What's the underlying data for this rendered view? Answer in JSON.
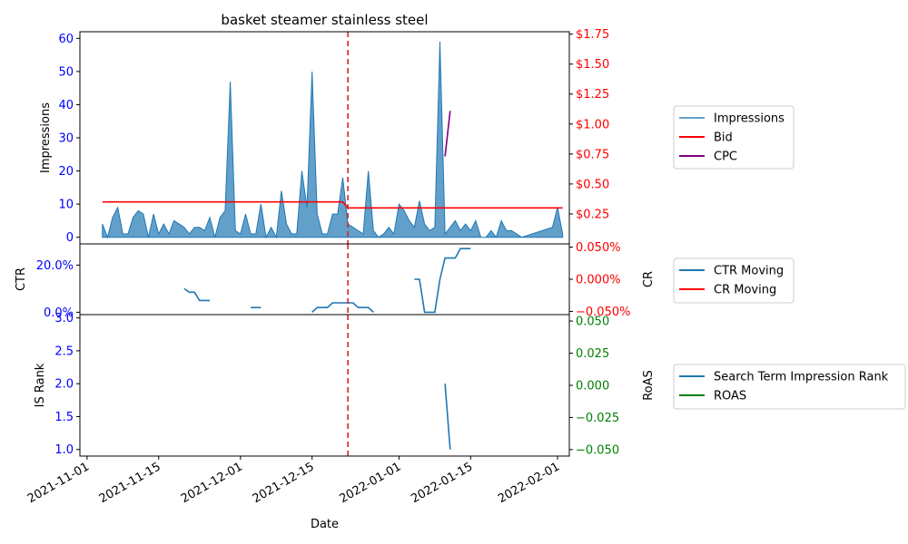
{
  "chart_data": {
    "type": "line",
    "title": "basket steamer stainless steel",
    "xlabel": "Date",
    "x_ticks": [
      "2021-11-01",
      "2021-11-15",
      "2021-12-01",
      "2021-12-15",
      "2022-01-01",
      "2022-01-15",
      "2022-02-01"
    ],
    "event_date": "2021-12-22",
    "event_color": "#d62728",
    "panels": [
      {
        "id": "impressions",
        "ylabel_left": "Impressions",
        "ylim_left": [
          -2,
          62
        ],
        "yticks_left": [
          0,
          10,
          20,
          30,
          40,
          50,
          60
        ],
        "ylim_right": [
          0,
          1.77
        ],
        "yticks_right": [
          0.25,
          0.5,
          0.75,
          1.0,
          1.25,
          1.5,
          1.75
        ],
        "yticks_right_labels": [
          "$0.25",
          "$0.50",
          "$0.75",
          "$1.00",
          "$1.25",
          "$1.50",
          "$1.75"
        ],
        "left_tick_color": "#0000ff",
        "right_tick_color": "#ff0000",
        "legend": [
          "Impressions",
          "Bid",
          "CPC"
        ],
        "series": [
          {
            "name": "Impressions",
            "axis": "left",
            "kind": "area",
            "color": "#1f77b4",
            "points": [
              [
                "2021-11-04",
                4
              ],
              [
                "2021-11-05",
                0
              ],
              [
                "2021-11-06",
                6
              ],
              [
                "2021-11-07",
                9
              ],
              [
                "2021-11-08",
                1
              ],
              [
                "2021-11-09",
                1
              ],
              [
                "2021-11-10",
                6
              ],
              [
                "2021-11-11",
                8
              ],
              [
                "2021-11-12",
                7
              ],
              [
                "2021-11-13",
                0
              ],
              [
                "2021-11-14",
                7
              ],
              [
                "2021-11-15",
                1
              ],
              [
                "2021-11-16",
                4
              ],
              [
                "2021-11-17",
                1
              ],
              [
                "2021-11-18",
                5
              ],
              [
                "2021-11-19",
                4
              ],
              [
                "2021-11-20",
                3
              ],
              [
                "2021-11-21",
                1
              ],
              [
                "2021-11-22",
                3
              ],
              [
                "2021-11-23",
                3
              ],
              [
                "2021-11-24",
                2
              ],
              [
                "2021-11-25",
                6
              ],
              [
                "2021-11-26",
                0
              ],
              [
                "2021-11-27",
                6
              ],
              [
                "2021-11-28",
                8
              ],
              [
                "2021-11-29",
                47
              ],
              [
                "2021-11-30",
                2
              ],
              [
                "2021-12-01",
                1
              ],
              [
                "2021-12-02",
                7
              ],
              [
                "2021-12-03",
                1
              ],
              [
                "2021-12-04",
                1
              ],
              [
                "2021-12-05",
                10
              ],
              [
                "2021-12-06",
                0
              ],
              [
                "2021-12-07",
                3
              ],
              [
                "2021-12-08",
                0
              ],
              [
                "2021-12-09",
                14
              ],
              [
                "2021-12-10",
                4
              ],
              [
                "2021-12-11",
                1
              ],
              [
                "2021-12-12",
                1
              ],
              [
                "2021-12-13",
                20
              ],
              [
                "2021-12-14",
                9
              ],
              [
                "2021-12-15",
                50
              ],
              [
                "2021-12-16",
                7
              ],
              [
                "2021-12-17",
                1
              ],
              [
                "2021-12-18",
                1
              ],
              [
                "2021-12-19",
                7
              ],
              [
                "2021-12-20",
                7
              ],
              [
                "2021-12-21",
                18
              ],
              [
                "2021-12-22",
                4
              ],
              [
                "2021-12-23",
                3
              ],
              [
                "2021-12-24",
                2
              ],
              [
                "2021-12-25",
                1
              ],
              [
                "2021-12-26",
                20
              ],
              [
                "2021-12-27",
                2
              ],
              [
                "2021-12-28",
                0
              ],
              [
                "2021-12-29",
                1
              ],
              [
                "2021-12-30",
                3
              ],
              [
                "2021-12-31",
                1
              ],
              [
                "2022-01-01",
                10
              ],
              [
                "2022-01-02",
                8
              ],
              [
                "2022-01-03",
                5
              ],
              [
                "2022-01-04",
                3
              ],
              [
                "2022-01-05",
                11
              ],
              [
                "2022-01-06",
                4
              ],
              [
                "2022-01-07",
                2
              ],
              [
                "2022-01-08",
                3
              ],
              [
                "2022-01-09",
                59
              ],
              [
                "2022-01-10",
                1
              ],
              [
                "2022-01-11",
                3
              ],
              [
                "2022-01-12",
                5
              ],
              [
                "2022-01-13",
                2
              ],
              [
                "2022-01-14",
                4
              ],
              [
                "2022-01-15",
                2
              ],
              [
                "2022-01-16",
                5
              ],
              [
                "2022-01-17",
                0
              ],
              [
                "2022-01-18",
                0
              ],
              [
                "2022-01-19",
                2
              ],
              [
                "2022-01-20",
                0
              ],
              [
                "2022-01-21",
                5
              ],
              [
                "2022-01-22",
                2
              ],
              [
                "2022-01-23",
                2
              ],
              [
                "2022-01-24",
                1
              ],
              [
                "2022-01-25",
                0
              ],
              [
                "2022-01-31",
                3
              ],
              [
                "2022-02-01",
                9
              ],
              [
                "2022-02-02",
                1
              ]
            ]
          },
          {
            "name": "Bid",
            "axis": "right",
            "kind": "line",
            "color": "#ff0000",
            "points": [
              [
                "2021-11-04",
                0.35
              ],
              [
                "2021-12-21",
                0.35
              ],
              [
                "2021-12-22",
                0.3
              ],
              [
                "2022-02-02",
                0.3
              ]
            ]
          },
          {
            "name": "CPC",
            "axis": "right",
            "kind": "line",
            "color": "#800080",
            "points": [
              [
                "2022-01-10",
                0.73
              ],
              [
                "2022-01-11",
                1.11
              ]
            ]
          }
        ]
      },
      {
        "id": "ctr",
        "ylabel_left": "CTR",
        "ylabel_right": "CR",
        "ylim_left": [
          -0.01,
          0.29
        ],
        "yticks_left": [
          0,
          0.2
        ],
        "yticks_left_labels": [
          "0.0%",
          "20.0%"
        ],
        "ylim_right": [
          -0.055,
          0.055
        ],
        "yticks_right": [
          -0.05,
          0.0,
          0.05
        ],
        "yticks_right_labels": [
          "−0.050%",
          "0.000%",
          "0.050%"
        ],
        "left_tick_color": "#0000ff",
        "right_tick_color": "#ff0000",
        "legend": [
          "CTR Moving",
          "CR Moving"
        ],
        "series": [
          {
            "name": "CTR Moving",
            "axis": "left",
            "kind": "segments",
            "color": "#1f77b4",
            "segments": [
              [
                [
                  "2021-11-20",
                  0.1
                ],
                [
                  "2021-11-21",
                  0.085
                ],
                [
                  "2021-11-22",
                  0.085
                ],
                [
                  "2021-11-23",
                  0.05
                ],
                [
                  "2021-11-24",
                  0.05
                ],
                [
                  "2021-11-25",
                  0.05
                ]
              ],
              [
                [
                  "2021-12-03",
                  0.02
                ],
                [
                  "2021-12-04",
                  0.02
                ],
                [
                  "2021-12-05",
                  0.02
                ]
              ],
              [
                [
                  "2021-12-15",
                  0.0
                ],
                [
                  "2021-12-16",
                  0.02
                ],
                [
                  "2021-12-17",
                  0.02
                ],
                [
                  "2021-12-18",
                  0.02
                ],
                [
                  "2021-12-19",
                  0.04
                ],
                [
                  "2021-12-20",
                  0.04
                ],
                [
                  "2021-12-21",
                  0.04
                ],
                [
                  "2021-12-22",
                  0.04
                ],
                [
                  "2021-12-23",
                  0.04
                ],
                [
                  "2021-12-24",
                  0.02
                ],
                [
                  "2021-12-25",
                  0.02
                ],
                [
                  "2021-12-26",
                  0.02
                ],
                [
                  "2021-12-27",
                  0.0
                ]
              ],
              [
                [
                  "2022-01-04",
                  0.14
                ],
                [
                  "2022-01-05",
                  0.14
                ],
                [
                  "2022-01-06",
                  0.0
                ],
                [
                  "2022-01-07",
                  0.0
                ],
                [
                  "2022-01-08",
                  0.0
                ],
                [
                  "2022-01-09",
                  0.14
                ],
                [
                  "2022-01-10",
                  0.23
                ],
                [
                  "2022-01-11",
                  0.23
                ],
                [
                  "2022-01-12",
                  0.23
                ],
                [
                  "2022-01-13",
                  0.27
                ],
                [
                  "2022-01-14",
                  0.27
                ],
                [
                  "2022-01-15",
                  0.27
                ]
              ]
            ]
          },
          {
            "name": "CR Moving",
            "axis": "right",
            "kind": "line",
            "color": "#ff0000",
            "points": []
          }
        ]
      },
      {
        "id": "is_rank",
        "ylabel_left": "IS Rank",
        "ylabel_right": "RoAS",
        "ylim_left": [
          0.9,
          3.05
        ],
        "yticks_left": [
          1.0,
          1.5,
          2.0,
          2.5,
          3.0
        ],
        "yticks_left_labels": [
          "1.0",
          "1.5",
          "2.0",
          "2.5",
          "3.0"
        ],
        "ylim_right": [
          -0.055,
          0.055
        ],
        "yticks_right": [
          -0.05,
          -0.025,
          0.0,
          0.025,
          0.05
        ],
        "yticks_right_labels": [
          "−0.050",
          "−0.025",
          "0.000",
          "0.025",
          "0.050"
        ],
        "left_tick_color": "#0000ff",
        "right_tick_color": "#008000",
        "legend": [
          "Search Term Impression Rank",
          "ROAS"
        ],
        "series": [
          {
            "name": "Search Term Impression Rank",
            "axis": "left",
            "kind": "line",
            "color": "#1f77b4",
            "points": [
              [
                "2022-01-10",
                2.0
              ],
              [
                "2022-01-11",
                1.0
              ]
            ]
          },
          {
            "name": "ROAS",
            "axis": "right",
            "kind": "line",
            "color": "#008000",
            "points": []
          }
        ]
      }
    ]
  }
}
